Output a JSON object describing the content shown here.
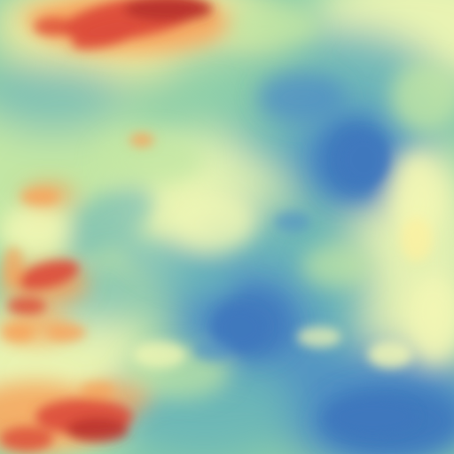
{
  "colormap": {
    "name": "Spectral",
    "stops": [
      "#9e0142",
      "#d53e4f",
      "#f46d43",
      "#fdae61",
      "#fee08b",
      "#ffffbf",
      "#e6f598",
      "#abdda4",
      "#66c2a5",
      "#3288bd",
      "#4a70b5"
    ]
  },
  "palette": {
    "deep_blue": "#3f78bd",
    "mid_blue": "#4f8fc4",
    "teal": "#68b4b9",
    "green_teal": "#8ecfa9",
    "light_green": "#c2e6a4",
    "pale_yellow": "#f3f7b4",
    "yellow": "#fbf0a0",
    "orange": "#f6a35c",
    "red": "#dc4b3a",
    "dark_red": "#b8332e"
  }
}
